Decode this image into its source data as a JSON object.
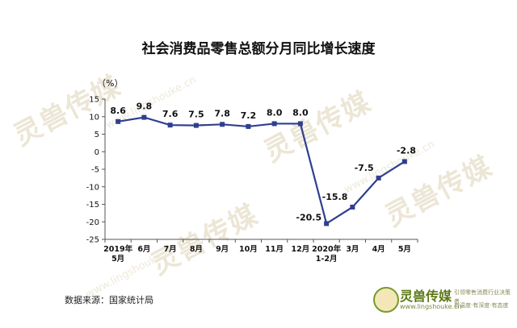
{
  "chart_data": {
    "type": "line",
    "title": "社会消费品零售总额分月同比增长速度",
    "ylabel": "（%）",
    "ylim": [
      -25,
      15
    ],
    "yticks": [
      15,
      10,
      5,
      0,
      -5,
      -10,
      -15,
      -20,
      -25
    ],
    "categories": [
      "2019年\n5月",
      "6月",
      "7月",
      "8月",
      "9月",
      "10月",
      "11月",
      "12月",
      "2020年\n1-2月",
      "3月",
      "4月",
      "5月"
    ],
    "series": [
      {
        "values": [
          8.6,
          9.8,
          7.6,
          7.5,
          7.8,
          7.2,
          8.0,
          8.0,
          -20.5,
          -15.8,
          -7.5,
          -2.8
        ]
      }
    ],
    "data_labels": [
      "8.6",
      "9.8",
      "7.6",
      "7.5",
      "7.8",
      "7.2",
      "8.0",
      "8.0",
      "-20.5",
      "-15.8",
      "-7.5",
      "-2.8"
    ],
    "grid": false,
    "line_color": "#2f3f8f"
  },
  "footer": {
    "source": "数据来源：国家统计局"
  },
  "brand": {
    "name": "灵兽传媒",
    "url": "www.lingshouke.cn",
    "slogan": "引领零售消费行业决策者",
    "slogan2": "有温度·有深度·有态度"
  },
  "watermarks": [
    "灵兽传媒",
    "www.lingshouke.cn"
  ],
  "icons": [
    "lingshou-logo-icon"
  ]
}
